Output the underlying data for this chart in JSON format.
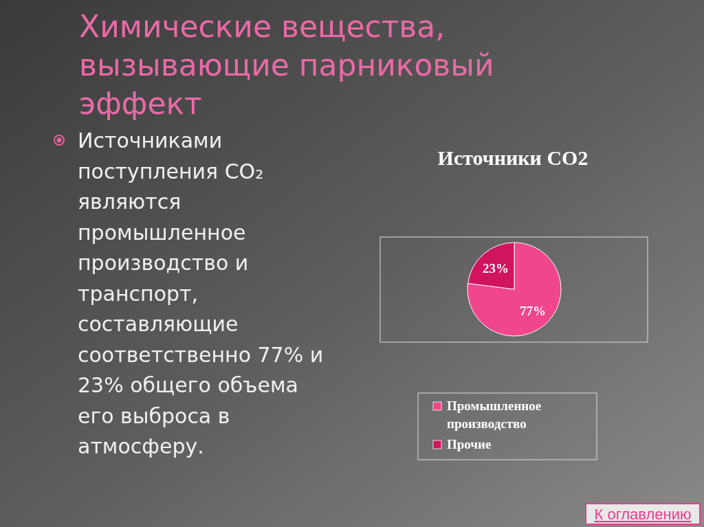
{
  "chart_data": {
    "type": "pie",
    "title": "Источники CO2",
    "categories": [
      "Промышленное производство",
      "Прочие"
    ],
    "values": [
      77,
      23
    ],
    "colors": [
      "#f0468c",
      "#d0145e"
    ],
    "value_labels": [
      "77%",
      "23%"
    ],
    "legend": "bottom",
    "annotations": [
      "Химические вещества, вызывающие парниковый эффект",
      "Источниками поступления CO₂ являются промышленное производство и транспорт, составляющие соответственно 77% и 23% общего объема его выброса в атмосферу.",
      "К оглавлению"
    ]
  }
}
